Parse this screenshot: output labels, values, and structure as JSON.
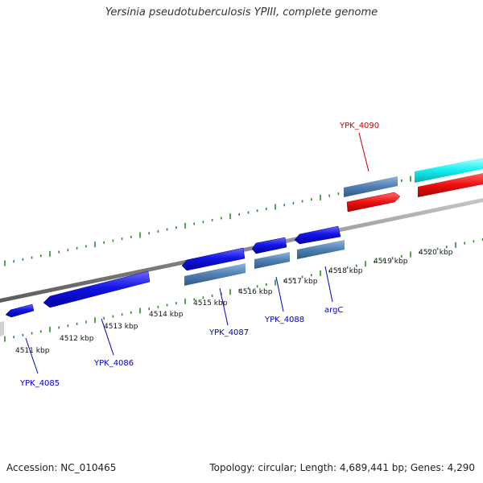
{
  "title": "Yersinia pseudotuberculosis YPIII, complete genome",
  "footer": {
    "accession": "Accession: NC_010465",
    "summary": "Topology: circular; Length: 4,689,441 bp; Genes: 4,290"
  },
  "scale_labels": [
    "4511 kbp",
    "4512 kbp",
    "4513 kbp",
    "4514 kbp",
    "4515 kbp",
    "4516 kbp",
    "4517 kbp",
    "4518 kbp",
    "4519 kbp",
    "4520 kbp"
  ],
  "gene_labels": [
    {
      "text": "YPK_4085",
      "color": "#0000cc"
    },
    {
      "text": "YPK_4086",
      "color": "#0000cc"
    },
    {
      "text": "YPK_4087",
      "color": "#0000cc"
    },
    {
      "text": "YPK_4088",
      "color": "#0000cc"
    },
    {
      "text": "argC",
      "color": "#0000cc"
    },
    {
      "text": "YPK_4090",
      "color": "#cc0000"
    }
  ],
  "colors": {
    "cds_blue": "#1010e0",
    "steelblue": "#4f7fb0",
    "red": "#ee1111",
    "cyan": "#19f0f0",
    "backbone": "#8a8a8a",
    "tick_green": "#2a8a2a"
  }
}
